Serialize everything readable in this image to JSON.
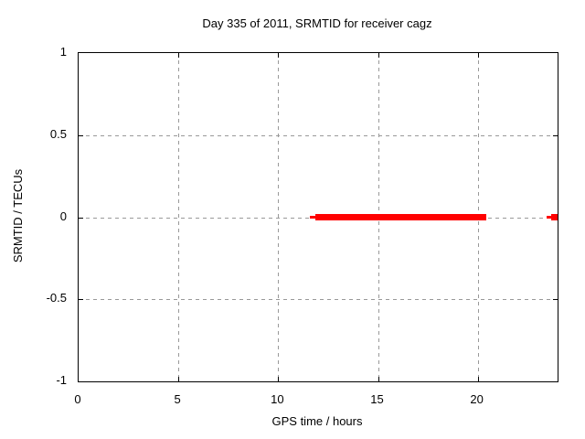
{
  "chart_data": {
    "type": "scatter",
    "title": "Day 335 of 2011, SRMTID for receiver cagz",
    "xlabel": "GPS time / hours",
    "ylabel": "SRMTID / TECUs",
    "xlim": [
      0,
      24
    ],
    "ylim": [
      -1,
      1
    ],
    "xticks": [
      {
        "value": 0,
        "label": "0"
      },
      {
        "value": 5,
        "label": "5"
      },
      {
        "value": 10,
        "label": "10"
      },
      {
        "value": 15,
        "label": "15"
      },
      {
        "value": 20,
        "label": "20"
      }
    ],
    "yticks": [
      {
        "value": 1,
        "label": "1"
      },
      {
        "value": 0.5,
        "label": "0.5"
      },
      {
        "value": 0,
        "label": "0"
      },
      {
        "value": -0.5,
        "label": "-0.5"
      },
      {
        "value": -1,
        "label": "-1"
      }
    ],
    "grid": true,
    "legend": "none",
    "colors": {
      "data": "#ff0000",
      "grid": "#999999",
      "axis": "#000000",
      "background": "#ffffff"
    },
    "series": [
      {
        "name": "SRMTID",
        "marker": "filled-square",
        "marker_size_px": 7,
        "color": "#ff0000",
        "segments": [
          {
            "x1": 11.6,
            "x2": 11.85,
            "y": 0,
            "style": "thin"
          },
          {
            "x1": 11.85,
            "x2": 20.43,
            "y": 0,
            "style": "thick"
          },
          {
            "x1": 23.45,
            "x2": 23.82,
            "y": 0,
            "style": "thin"
          }
        ],
        "points": [
          {
            "x": 23.85,
            "y": 0
          }
        ]
      }
    ]
  }
}
